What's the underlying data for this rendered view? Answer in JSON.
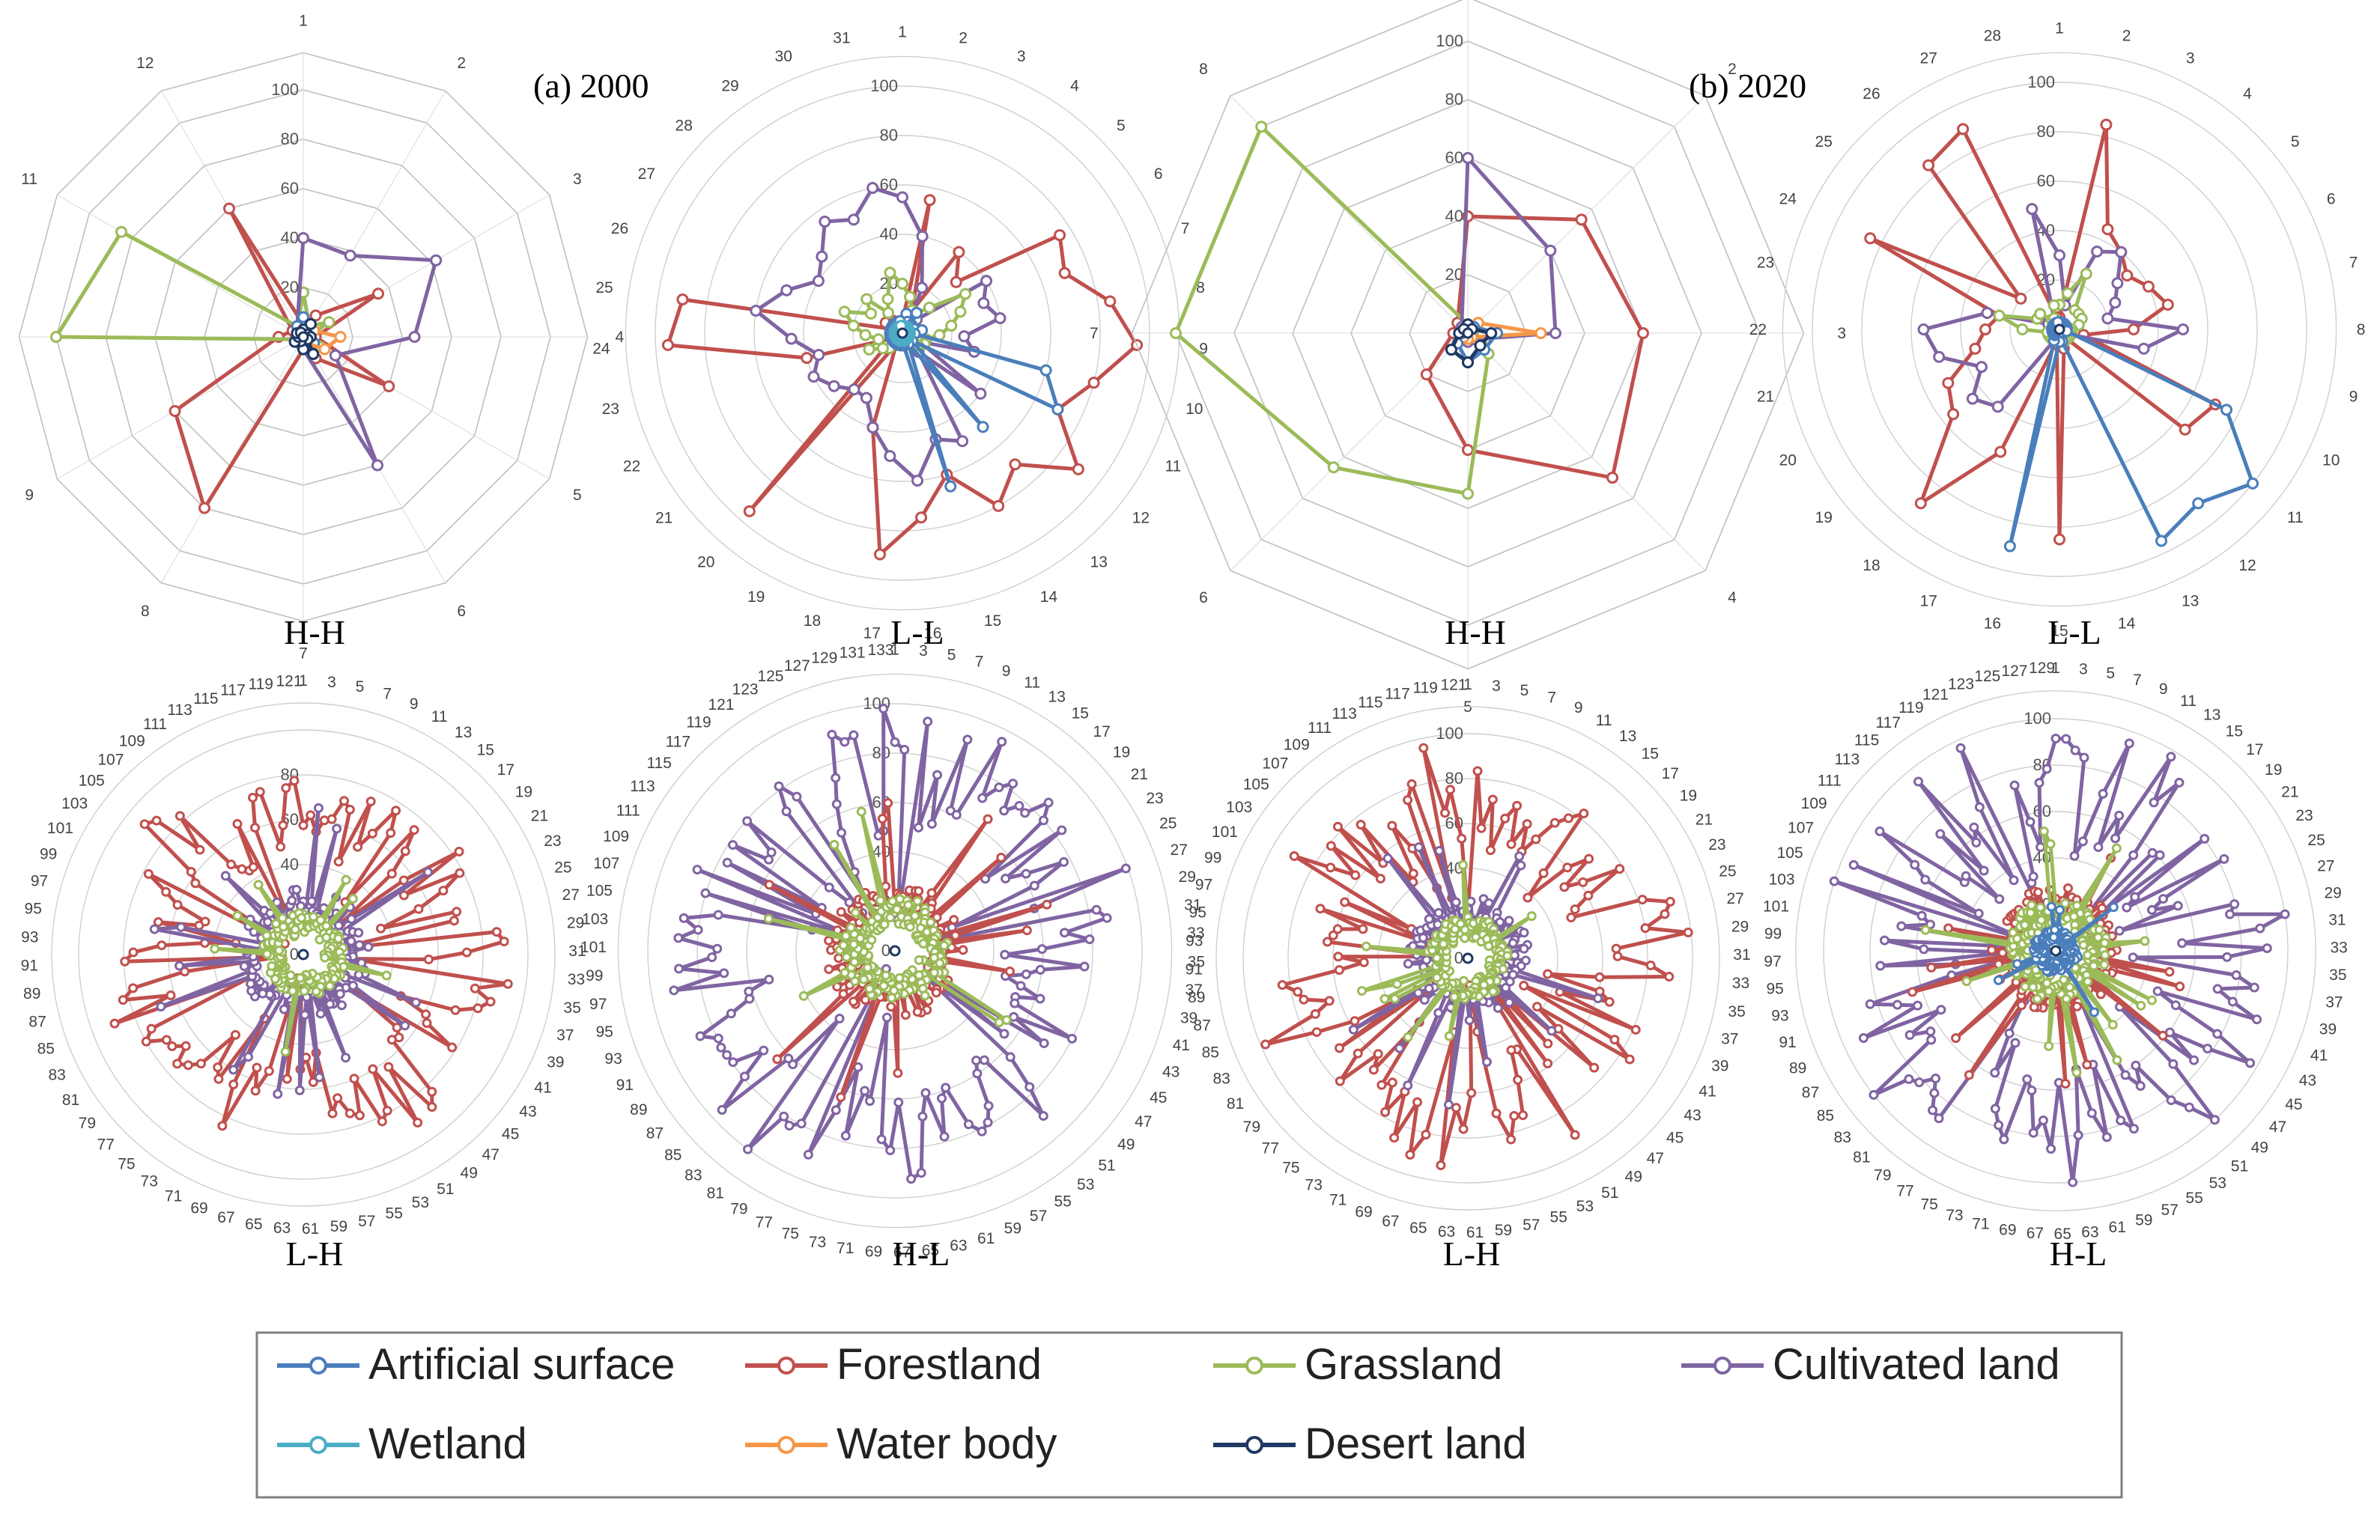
{
  "legend": [
    {
      "name": "Artificial surface",
      "color": "#4a7ebb"
    },
    {
      "name": "Forestland",
      "color": "#c0504d"
    },
    {
      "name": "Grassland",
      "color": "#9bbb59"
    },
    {
      "name": "Cultivated land",
      "color": "#8064a2"
    },
    {
      "name": "Wetland",
      "color": "#4bacc6"
    },
    {
      "name": "Water body",
      "color": "#f79646"
    },
    {
      "name": "Desert land",
      "color": "#1f3864"
    }
  ],
  "year_labels": [
    "(a) 2000",
    "(b) 2020"
  ],
  "chart_data": [
    {
      "type": "radar",
      "title": "H-H",
      "year": "(a) 2000",
      "categories_count": 12,
      "shape": "polygon",
      "ticks": [
        0,
        20,
        40,
        60,
        80,
        100
      ],
      "rmax": 100,
      "series": [
        {
          "name": "Forestland",
          "values": [
            5,
            10,
            35,
            5,
            40,
            10,
            5,
            80,
            60,
            10,
            5,
            60
          ]
        },
        {
          "name": "Grassland",
          "values": [
            18,
            5,
            12,
            2,
            8,
            2,
            2,
            2,
            2,
            100,
            85,
            5
          ]
        },
        {
          "name": "Cultivated land",
          "values": [
            40,
            38,
            62,
            45,
            15,
            60,
            5,
            3,
            2,
            2,
            3,
            5
          ]
        },
        {
          "name": "Artificial surface",
          "values": [
            8,
            4,
            3,
            2,
            5,
            8,
            4,
            3,
            2,
            2,
            3,
            5
          ]
        },
        {
          "name": "Water body",
          "values": [
            2,
            2,
            5,
            15,
            10,
            3,
            2,
            2,
            2,
            2,
            2,
            2
          ]
        },
        {
          "name": "Desert land",
          "values": [
            3,
            6,
            2,
            3,
            2,
            8,
            5,
            2,
            4,
            2,
            3,
            2
          ]
        }
      ]
    },
    {
      "type": "radar",
      "title": "L-L",
      "year": "(a) 2000",
      "categories_count": 31,
      "shape": "circle",
      "ticks": [
        0,
        20,
        40,
        60,
        80,
        100
      ],
      "rmax": 100,
      "series": [
        {
          "name": "Forestland",
          "values": [
            5,
            55,
            10,
            40,
            30,
            75,
            70,
            85,
            95,
            80,
            70,
            90,
            70,
            80,
            60,
            75,
            90,
            40,
            5,
            95,
            8,
            5,
            40,
            95,
            90,
            5,
            8,
            5,
            6,
            5,
            5
          ]
        },
        {
          "name": "Cultivated land",
          "values": [
            55,
            40,
            20,
            5,
            8,
            40,
            35,
            40,
            25,
            30,
            8,
            40,
            10,
            50,
            45,
            60,
            50,
            40,
            30,
            30,
            35,
            40,
            35,
            45,
            60,
            50,
            40,
            45,
            55,
            50,
            60
          ]
        },
        {
          "name": "Grassland",
          "values": [
            20,
            15,
            10,
            10,
            15,
            30,
            25,
            20,
            15,
            10,
            10,
            8,
            5,
            5,
            5,
            5,
            5,
            5,
            5,
            8,
            10,
            15,
            10,
            15,
            20,
            25,
            15,
            20,
            10,
            15,
            25
          ]
        },
        {
          "name": "Artificial surface",
          "values": [
            5,
            8,
            5,
            10,
            5,
            5,
            5,
            8,
            5,
            60,
            70,
            5,
            50,
            5,
            65,
            5,
            5,
            5,
            5,
            5,
            5,
            5,
            5,
            5,
            5,
            5,
            5,
            5,
            5,
            5,
            5
          ]
        },
        {
          "name": "Wetland",
          "values": [
            3,
            3,
            3,
            3,
            3,
            3,
            3,
            3,
            3,
            3,
            3,
            3,
            3,
            3,
            3,
            3,
            3,
            3,
            3,
            3,
            3,
            3,
            3,
            3,
            3,
            3,
            3,
            3,
            3,
            3,
            3
          ]
        }
      ]
    },
    {
      "type": "radar",
      "title": "H-H",
      "year": "(b) 2020",
      "categories_count": 8,
      "shape": "polygon",
      "ticks": [
        0,
        20,
        40,
        60,
        80,
        100
      ],
      "rmax": 100,
      "series": [
        {
          "name": "Forestland",
          "values": [
            40,
            55,
            60,
            70,
            40,
            20,
            5,
            5
          ]
        },
        {
          "name": "Grassland",
          "values": [
            3,
            5,
            5,
            10,
            55,
            65,
            100,
            100
          ]
        },
        {
          "name": "Cultivated land",
          "values": [
            60,
            40,
            30,
            3,
            3,
            3,
            3,
            3
          ]
        },
        {
          "name": "Water body",
          "values": [
            2,
            5,
            25,
            2,
            2,
            2,
            2,
            2
          ]
        },
        {
          "name": "Artificial surface",
          "values": [
            2,
            3,
            10,
            8,
            10,
            5,
            2,
            2
          ]
        },
        {
          "name": "Desert land",
          "values": [
            3,
            2,
            8,
            6,
            10,
            8,
            3,
            2
          ]
        }
      ]
    },
    {
      "type": "radar",
      "title": "L-L",
      "year": "(b) 2020",
      "categories_count": 28,
      "shape": "circle",
      "ticks": [
        0,
        20,
        40,
        60,
        80,
        100
      ],
      "rmax": 100,
      "series": [
        {
          "name": "Forestland",
          "values": [
            5,
            85,
            45,
            40,
            35,
            40,
            45,
            30,
            10,
            70,
            65,
            5,
            5,
            8,
            85,
            5,
            55,
            90,
            55,
            50,
            35,
            30,
            25,
            85,
            20,
            85,
            90,
            5
          ]
        },
        {
          "name": "Cultivated land",
          "values": [
            30,
            10,
            35,
            40,
            30,
            25,
            20,
            50,
            35,
            5,
            5,
            5,
            5,
            5,
            5,
            5,
            5,
            40,
            45,
            35,
            50,
            55,
            30,
            5,
            10,
            5,
            5,
            50
          ]
        },
        {
          "name": "Grassland",
          "values": [
            10,
            15,
            25,
            10,
            10,
            10,
            8,
            5,
            5,
            5,
            5,
            5,
            5,
            5,
            5,
            5,
            5,
            5,
            5,
            5,
            5,
            15,
            25,
            10,
            10,
            5,
            5,
            10
          ]
        },
        {
          "name": "Artificial surface",
          "values": [
            3,
            3,
            3,
            3,
            3,
            3,
            3,
            3,
            3,
            75,
            100,
            90,
            95,
            5,
            5,
            90,
            5,
            3,
            3,
            3,
            3,
            3,
            3,
            3,
            3,
            3,
            3,
            3
          ]
        }
      ]
    },
    {
      "type": "radar",
      "title": "L-H",
      "year": "(a) 2000",
      "categories_count": 121,
      "shape": "circle",
      "ticks": [
        0,
        20,
        40,
        60,
        80
      ],
      "rmax": 100,
      "tick_label_suffix": "0",
      "series": [
        {
          "name": "Forestland",
          "pattern": "ring",
          "base": 68,
          "amp": 20,
          "seed": 3
        },
        {
          "name": "Cultivated land",
          "pattern": "core",
          "base": 20,
          "amp": 14,
          "seed": 7
        },
        {
          "name": "Grassland",
          "pattern": "core",
          "base": 12,
          "amp": 10,
          "seed": 11
        }
      ]
    },
    {
      "type": "radar",
      "title": "H-L",
      "year": "(a) 2000",
      "categories_count": 133,
      "shape": "circle",
      "ticks": [
        0,
        20,
        40,
        60,
        80,
        100
      ],
      "rmax": 100,
      "series": [
        {
          "name": "Cultivated land",
          "pattern": "ring",
          "base": 70,
          "amp": 26,
          "seed": 5
        },
        {
          "name": "Forestland",
          "pattern": "core",
          "base": 18,
          "amp": 14,
          "seed": 9
        },
        {
          "name": "Grassland",
          "pattern": "core",
          "base": 14,
          "amp": 12,
          "seed": 13
        }
      ]
    },
    {
      "type": "radar",
      "title": "L-H",
      "year": "(b) 2020",
      "categories_count": 121,
      "shape": "circle",
      "ticks": [
        0,
        20,
        40,
        60,
        80,
        100
      ],
      "rmax": 100,
      "series": [
        {
          "name": "Forestland",
          "pattern": "ring",
          "base": 70,
          "amp": 24,
          "seed": 17
        },
        {
          "name": "Cultivated land",
          "pattern": "core",
          "base": 18,
          "amp": 14,
          "seed": 19
        },
        {
          "name": "Grassland",
          "pattern": "core",
          "base": 12,
          "amp": 10,
          "seed": 23
        }
      ]
    },
    {
      "type": "radar",
      "title": "H-L",
      "year": "(b) 2020",
      "categories_count": 129,
      "shape": "circle",
      "ticks": [
        0,
        20,
        40,
        60,
        80,
        100
      ],
      "rmax": 100,
      "series": [
        {
          "name": "Cultivated land",
          "pattern": "ring",
          "base": 72,
          "amp": 26,
          "seed": 29
        },
        {
          "name": "Forestland",
          "pattern": "core",
          "base": 18,
          "amp": 14,
          "seed": 31
        },
        {
          "name": "Grassland",
          "pattern": "core",
          "base": 14,
          "amp": 12,
          "seed": 37
        },
        {
          "name": "Artificial surface",
          "pattern": "sparse",
          "base": 10,
          "amp": 40,
          "seed": 41
        }
      ]
    }
  ]
}
